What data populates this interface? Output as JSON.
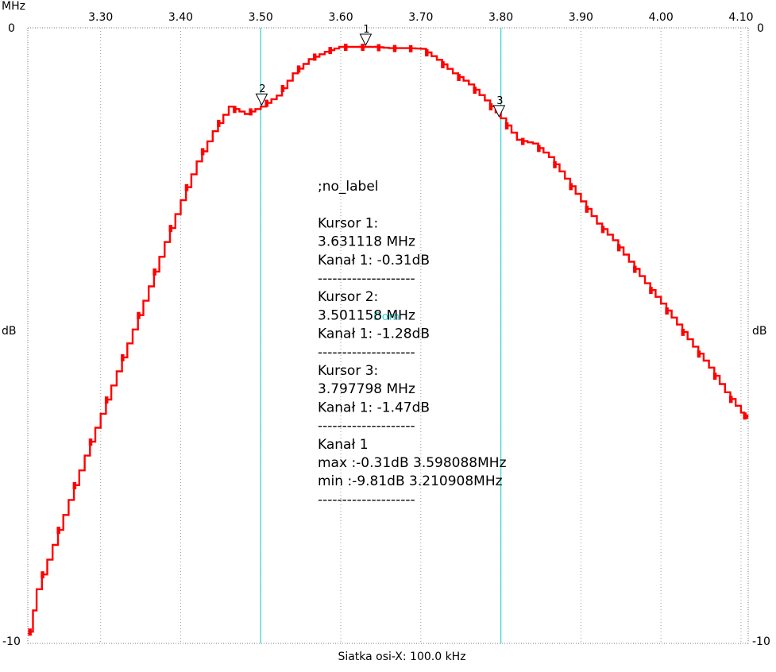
{
  "chart_data": {
    "type": "line",
    "x_unit": "MHz",
    "y_unit_left": "dB",
    "y_unit_right": "dB",
    "xlim": [
      3.209,
      4.109
    ],
    "ylim": [
      -10,
      0
    ],
    "y_top_label_left": "0",
    "y_top_label_right": "0",
    "y_bottom_label_left": "-10",
    "y_bottom_label_right": "-10",
    "x_ticks": [
      3.3,
      3.4,
      3.5,
      3.6,
      3.7,
      3.8,
      3.9,
      4.0,
      4.1
    ],
    "x_tick_labels": [
      "3.30",
      "3.40",
      "3.50",
      "3.60",
      "3.70",
      "3.80",
      "3.90",
      "4.00",
      "4.10"
    ],
    "x_grid_caption": "Siatka osi-X: 100.0 kHz",
    "grid": "vertical-dotted",
    "cyan_lines_x": [
      3.5,
      3.8
    ],
    "marker_line_text": "Dom",
    "series": [
      {
        "color": "#ff0000",
        "x": [
          3.210908,
          3.22,
          3.24,
          3.26,
          3.28,
          3.3,
          3.32,
          3.34,
          3.36,
          3.38,
          3.4,
          3.42,
          3.44,
          3.46,
          3.48,
          3.5,
          3.52,
          3.54,
          3.56,
          3.58,
          3.598088,
          3.62,
          3.64,
          3.66,
          3.68,
          3.7,
          3.72,
          3.74,
          3.76,
          3.78,
          3.8,
          3.82,
          3.84,
          3.86,
          3.88,
          3.9,
          3.92,
          3.94,
          3.96,
          3.98,
          4.0,
          4.02,
          4.04,
          4.06,
          4.08,
          4.1,
          4.108
        ],
        "y": [
          -9.81,
          -9.12,
          -8.4,
          -7.67,
          -6.95,
          -6.27,
          -5.58,
          -4.9,
          -4.2,
          -3.48,
          -2.8,
          -2.17,
          -1.68,
          -1.28,
          -1.4,
          -1.28,
          -1.1,
          -0.74,
          -0.51,
          -0.39,
          -0.31,
          -0.31,
          -0.31,
          -0.33,
          -0.33,
          -0.34,
          -0.52,
          -0.74,
          -0.92,
          -1.18,
          -1.47,
          -1.82,
          -1.88,
          -2.1,
          -2.45,
          -2.82,
          -3.18,
          -3.45,
          -3.8,
          -4.15,
          -4.48,
          -4.82,
          -5.18,
          -5.52,
          -5.92,
          -6.25,
          -6.35
        ]
      }
    ],
    "markers": [
      {
        "label": "1",
        "x": 3.631118,
        "y": -0.31
      },
      {
        "label": "2",
        "x": 3.501158,
        "y": -1.28
      },
      {
        "label": "3",
        "x": 3.797798,
        "y": -1.47
      }
    ]
  },
  "info_panel": {
    "lines": [
      ";no_label",
      "",
      "Kursor 1:",
      "3.631118 MHz",
      "Kanał 1: -0.31dB",
      "--------------------",
      "Kursor 2:",
      "3.501158 MHz",
      "Kanał 1: -1.28dB",
      "--------------------",
      "Kursor 3:",
      "3.797798 MHz",
      "Kanał 1: -1.47dB",
      "--------------------",
      "Kanał 1",
      "max :-0.31dB 3.598088MHz",
      "min :-9.81dB 3.210908MHz",
      "--------------------"
    ]
  },
  "colors": {
    "trace": "#ff0000",
    "cursor_line": "#3cd6d6",
    "grid": "#9a9a9a"
  }
}
